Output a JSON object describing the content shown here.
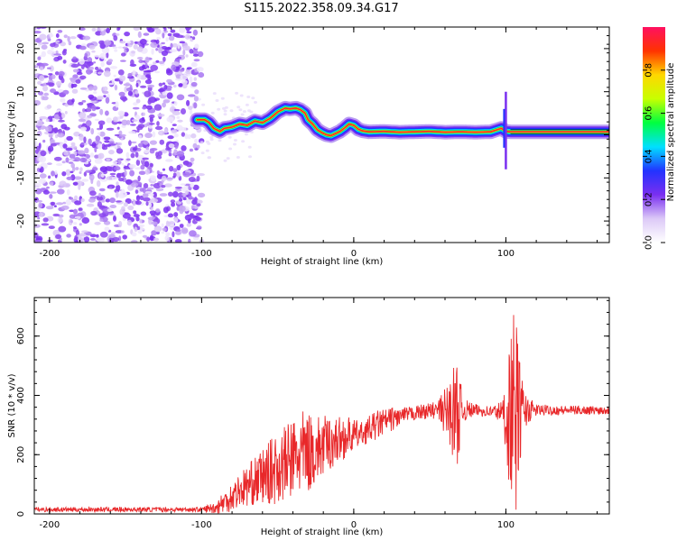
{
  "title": "S115.2022.358.09.34.G17",
  "chart_data": [
    {
      "type": "heatmap",
      "xlabel": "Height of straight line (km)",
      "ylabel": "Frequency (Hz)",
      "xlim": [
        -210,
        168
      ],
      "ylim": [
        -25,
        25
      ],
      "xticks": [
        "-200",
        "-100",
        "0",
        "100"
      ],
      "yticks": [
        "-20",
        "-10",
        "0",
        "10",
        "20"
      ],
      "grid": false,
      "ridge": {
        "x": [
          -103,
          -98,
          -95,
          -92,
          -88,
          -85,
          -80,
          -75,
          -70,
          -65,
          -60,
          -55,
          -50,
          -45,
          -42,
          -38,
          -35,
          -32,
          -30,
          -27,
          -24,
          -21,
          -18,
          -15,
          -12,
          -9,
          -6,
          -3,
          0,
          3,
          6,
          10,
          20,
          30,
          40,
          50,
          60,
          70,
          80,
          90,
          97,
          100,
          103,
          110,
          120,
          140,
          168
        ],
        "y": [
          3.5,
          3.5,
          2.8,
          1.5,
          0.8,
          1.5,
          1.8,
          2.5,
          2.2,
          3.2,
          2.8,
          3.8,
          5.3,
          6.2,
          6.0,
          6.2,
          5.8,
          5.0,
          3.5,
          2.5,
          1.2,
          0.5,
          0.0,
          -0.2,
          0.3,
          0.8,
          1.6,
          2.5,
          2.2,
          1.3,
          0.9,
          0.7,
          0.8,
          0.6,
          0.7,
          0.8,
          0.6,
          0.7,
          0.6,
          0.7,
          1.5,
          0.8,
          0.7,
          0.7,
          0.7,
          0.7,
          0.7
        ]
      },
      "colorbar": {
        "label": "Normalized spectral amplitude",
        "range": [
          0,
          1
        ],
        "ticks": [
          "0.0",
          "0.2",
          "0.4",
          "0.6",
          "0.8"
        ],
        "colors": [
          "#ffffff",
          "#dcc9f7",
          "#7a2ff0",
          "#2233ff",
          "#00e0ff",
          "#00ff40",
          "#c8ff00",
          "#ffd700",
          "#ff3300",
          "#ff1060"
        ]
      }
    },
    {
      "type": "line",
      "xlabel": "Height of straight line (km)",
      "ylabel": "SNR (10 * v/v)",
      "xlim": [
        -210,
        168
      ],
      "ylim": [
        0,
        730
      ],
      "xticks": [
        "-200",
        "-100",
        "0",
        "100"
      ],
      "yticks": [
        "0",
        "200",
        "400",
        "600"
      ],
      "grid": false,
      "color": "#e8282a",
      "envelope": {
        "x": [
          -210,
          -150,
          -100,
          -92,
          -85,
          -75,
          -65,
          -55,
          -45,
          -35,
          -25,
          -15,
          -5,
          5,
          15,
          25,
          35,
          45,
          55,
          62,
          65,
          68,
          72,
          80,
          90,
          98,
          101,
          104,
          106,
          108,
          112,
          120,
          140,
          168
        ],
        "mean": [
          15,
          15,
          15,
          20,
          40,
          80,
          110,
          140,
          170,
          200,
          215,
          240,
          260,
          270,
          300,
          320,
          335,
          345,
          350,
          345,
          345,
          340,
          350,
          350,
          345,
          345,
          340,
          340,
          330,
          340,
          350,
          350,
          350,
          350
        ],
        "amp": [
          8,
          8,
          8,
          20,
          40,
          60,
          80,
          110,
          130,
          150,
          120,
          90,
          70,
          40,
          50,
          40,
          25,
          25,
          30,
          100,
          150,
          180,
          40,
          20,
          20,
          40,
          200,
          300,
          380,
          250,
          60,
          20,
          15,
          15
        ]
      }
    }
  ]
}
